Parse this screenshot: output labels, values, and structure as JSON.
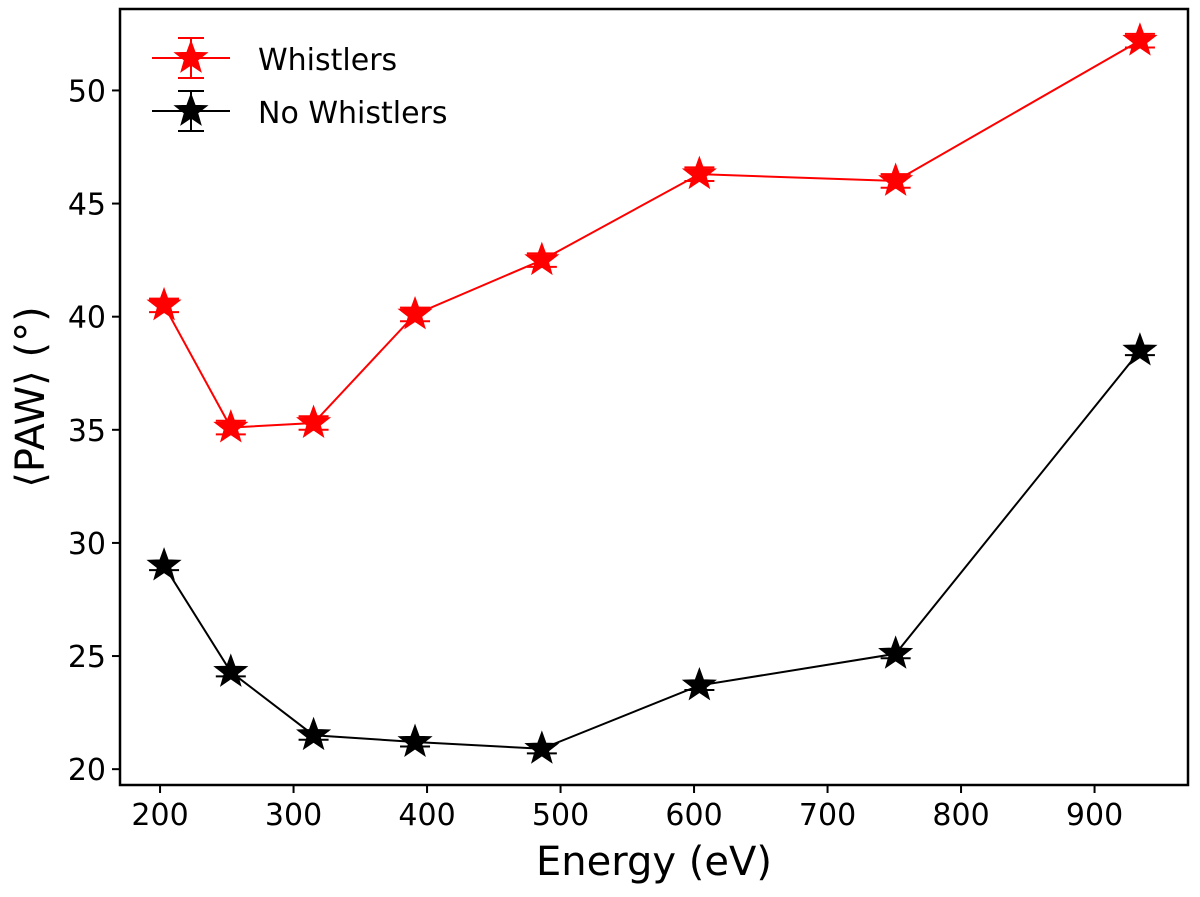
{
  "chart_data": {
    "type": "line",
    "xlabel": "Energy (eV)",
    "ylabel": "⟨PAW⟩ (°)",
    "xlim": [
      170,
      970
    ],
    "ylim": [
      19.3,
      53.6
    ],
    "xticks": [
      200,
      300,
      400,
      500,
      600,
      700,
      800,
      900
    ],
    "yticks": [
      20,
      25,
      30,
      35,
      40,
      45,
      50
    ],
    "grid": false,
    "legend_position": "top-left",
    "x": [
      203,
      253,
      315,
      391,
      486,
      604,
      751,
      934
    ],
    "series": [
      {
        "name": "Whistlers",
        "color": "#ff0000",
        "marker": "star",
        "values": [
          40.5,
          35.1,
          35.3,
          40.1,
          42.5,
          46.3,
          46.0,
          52.2
        ],
        "errors": [
          0.3,
          0.3,
          0.3,
          0.3,
          0.3,
          0.3,
          0.3,
          0.3
        ]
      },
      {
        "name": "No Whistlers",
        "color": "#000000",
        "marker": "star",
        "values": [
          29.0,
          24.3,
          21.5,
          21.2,
          20.9,
          23.7,
          25.1,
          38.5
        ],
        "errors": [
          0.2,
          0.2,
          0.2,
          0.2,
          0.2,
          0.2,
          0.2,
          0.2
        ]
      }
    ]
  }
}
